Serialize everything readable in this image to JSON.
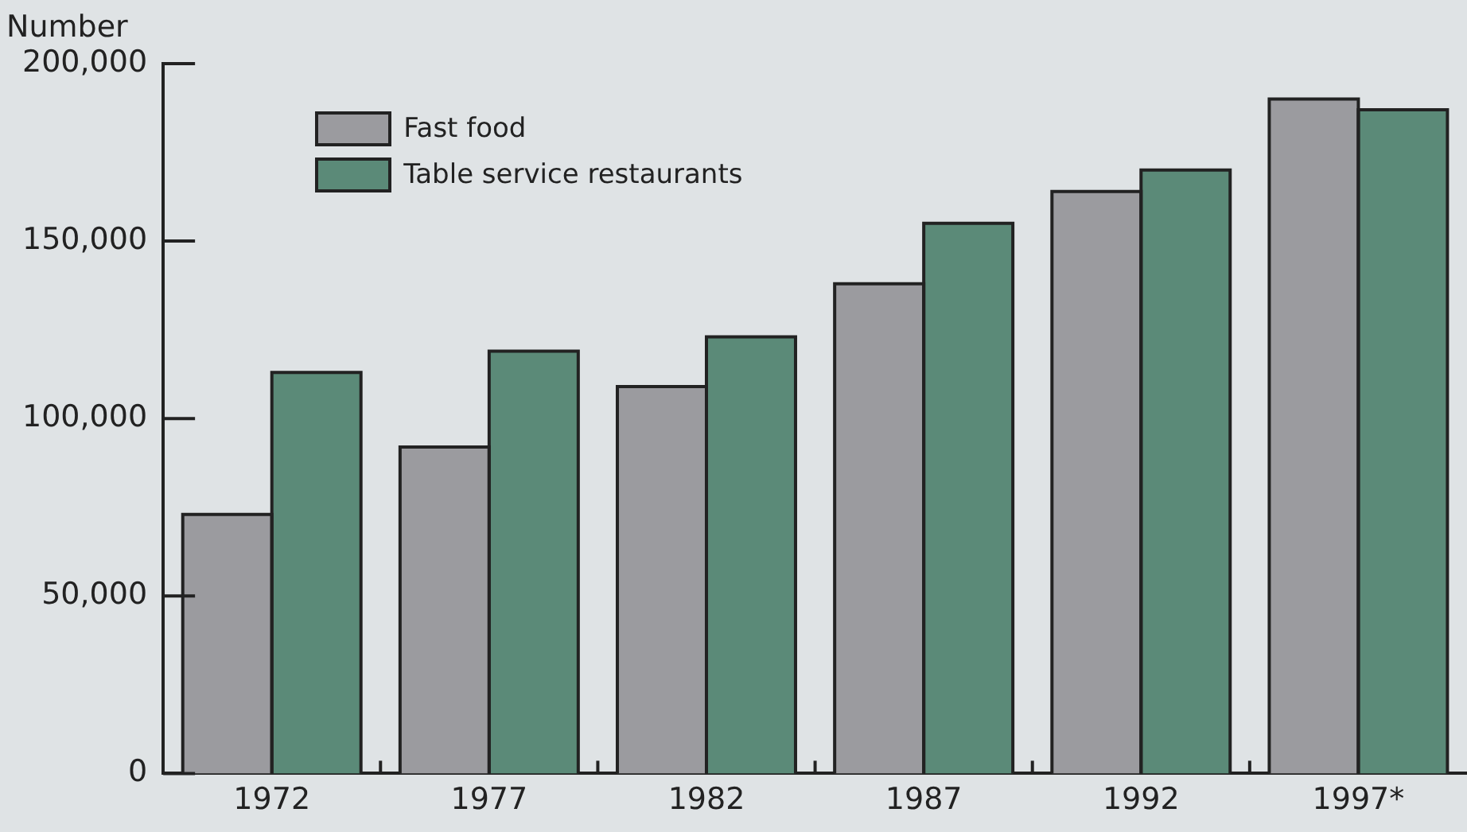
{
  "chart_data": {
    "type": "bar",
    "ylabel": "Number",
    "categories": [
      "1972",
      "1977",
      "1982",
      "1987",
      "1992",
      "1997*"
    ],
    "series": [
      {
        "name": "Fast food",
        "color": "#9b9b9f",
        "values": [
          73000,
          92000,
          109000,
          138000,
          164000,
          190000
        ]
      },
      {
        "name": "Table service restaurants",
        "color": "#5b8a78",
        "values": [
          113000,
          119000,
          123000,
          155000,
          170000,
          187000
        ]
      }
    ],
    "ylim": [
      0,
      200000
    ],
    "yticks": [
      {
        "value": 0,
        "label": "0"
      },
      {
        "value": 50000,
        "label": "50,000"
      },
      {
        "value": 100000,
        "label": "100,000"
      },
      {
        "value": 150000,
        "label": "150,000"
      },
      {
        "value": 200000,
        "label": "200,000"
      }
    ],
    "grid": false,
    "legend": "top left"
  }
}
